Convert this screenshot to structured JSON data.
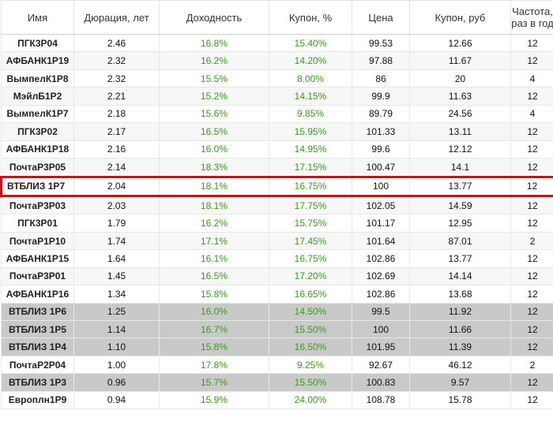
{
  "headers": [
    "Имя",
    "Дюрация, лет",
    "Доходность",
    "Купон, %",
    "Цена",
    "Купон, руб",
    "Частота, раз в год"
  ],
  "rows": [
    {
      "name": "ПГК3Р04",
      "duration": "2.46",
      "yield": "16.8%",
      "coupon_pct": "15.40%",
      "price": "99.53",
      "coupon_rub": "12.66",
      "freq": "12",
      "style": "normal"
    },
    {
      "name": "АФБАНК1Р19",
      "duration": "2.32",
      "yield": "16.2%",
      "coupon_pct": "14.20%",
      "price": "97.88",
      "coupon_rub": "11.67",
      "freq": "12",
      "style": "normal"
    },
    {
      "name": "ВымпелК1Р8",
      "duration": "2.32",
      "yield": "15.5%",
      "coupon_pct": "8.00%",
      "price": "86",
      "coupon_rub": "20",
      "freq": "4",
      "style": "normal"
    },
    {
      "name": "МэйлБ1Р2",
      "duration": "2.21",
      "yield": "15.2%",
      "coupon_pct": "14.15%",
      "price": "99.9",
      "coupon_rub": "11.63",
      "freq": "12",
      "style": "normal"
    },
    {
      "name": "ВымпелК1Р7",
      "duration": "2.18",
      "yield": "15.6%",
      "coupon_pct": "9.85%",
      "price": "89.79",
      "coupon_rub": "24.56",
      "freq": "4",
      "style": "normal"
    },
    {
      "name": "ПГК3Р02",
      "duration": "2.17",
      "yield": "16.5%",
      "coupon_pct": "15.95%",
      "price": "101.33",
      "coupon_rub": "13.11",
      "freq": "12",
      "style": "normal"
    },
    {
      "name": "АФБАНК1Р18",
      "duration": "2.16",
      "yield": "16.0%",
      "coupon_pct": "14.95%",
      "price": "99.6",
      "coupon_rub": "12.12",
      "freq": "12",
      "style": "normal"
    },
    {
      "name": "ПочтаР3Р05",
      "duration": "2.14",
      "yield": "18.3%",
      "coupon_pct": "17.15%",
      "price": "100.47",
      "coupon_rub": "14.1",
      "freq": "12",
      "style": "normal"
    },
    {
      "name": "ВТБЛИЗ 1Р7",
      "duration": "2.04",
      "yield": "18.1%",
      "coupon_pct": "16.75%",
      "price": "100",
      "coupon_rub": "13.77",
      "freq": "12",
      "style": "highlight"
    },
    {
      "name": "ПочтаР3Р03",
      "duration": "2.03",
      "yield": "18.1%",
      "coupon_pct": "17.75%",
      "price": "102.05",
      "coupon_rub": "14.59",
      "freq": "12",
      "style": "normal"
    },
    {
      "name": "ПГК3Р01",
      "duration": "1.79",
      "yield": "16.2%",
      "coupon_pct": "15.75%",
      "price": "101.17",
      "coupon_rub": "12.95",
      "freq": "12",
      "style": "normal"
    },
    {
      "name": "ПочтаР1Р10",
      "duration": "1.74",
      "yield": "17.1%",
      "coupon_pct": "17.45%",
      "price": "101.64",
      "coupon_rub": "87.01",
      "freq": "2",
      "style": "normal"
    },
    {
      "name": "АФБАНК1Р15",
      "duration": "1.64",
      "yield": "16.1%",
      "coupon_pct": "16.75%",
      "price": "102.86",
      "coupon_rub": "13.77",
      "freq": "12",
      "style": "normal"
    },
    {
      "name": "ПочтаР3Р01",
      "duration": "1.45",
      "yield": "16.5%",
      "coupon_pct": "17.20%",
      "price": "102.69",
      "coupon_rub": "14.14",
      "freq": "12",
      "style": "normal"
    },
    {
      "name": "АФБАНК1Р16",
      "duration": "1.34",
      "yield": "15.8%",
      "coupon_pct": "16.65%",
      "price": "102.86",
      "coupon_rub": "13.68",
      "freq": "12",
      "style": "normal"
    },
    {
      "name": "ВТБЛИЗ 1Р6",
      "duration": "1.25",
      "yield": "16.0%",
      "coupon_pct": "14.50%",
      "price": "99.5",
      "coupon_rub": "11.92",
      "freq": "12",
      "style": "gray"
    },
    {
      "name": "ВТБЛИЗ 1Р5",
      "duration": "1.14",
      "yield": "16.7%",
      "coupon_pct": "15.50%",
      "price": "100",
      "coupon_rub": "11.66",
      "freq": "12",
      "style": "gray"
    },
    {
      "name": "ВТБЛИЗ 1Р4",
      "duration": "1.10",
      "yield": "15.8%",
      "coupon_pct": "16.50%",
      "price": "101.95",
      "coupon_rub": "11.39",
      "freq": "12",
      "style": "gray"
    },
    {
      "name": "ПочтаР2Р04",
      "duration": "1.00",
      "yield": "17.8%",
      "coupon_pct": "9.25%",
      "price": "92.67",
      "coupon_rub": "46.12",
      "freq": "2",
      "style": "normal"
    },
    {
      "name": "ВТБЛИЗ 1Р3",
      "duration": "0.96",
      "yield": "15.7%",
      "coupon_pct": "15.50%",
      "price": "100.83",
      "coupon_rub": "9.57",
      "freq": "12",
      "style": "gray"
    },
    {
      "name": "Европлн1Р9",
      "duration": "0.94",
      "yield": "15.9%",
      "coupon_pct": "24.00%",
      "price": "108.78",
      "coupon_rub": "15.78",
      "freq": "12",
      "style": "normal"
    }
  ],
  "colors": {
    "green_text": "#3a9a1e",
    "highlight_border": "#d01010",
    "gray_row": "#c9c9c9"
  }
}
